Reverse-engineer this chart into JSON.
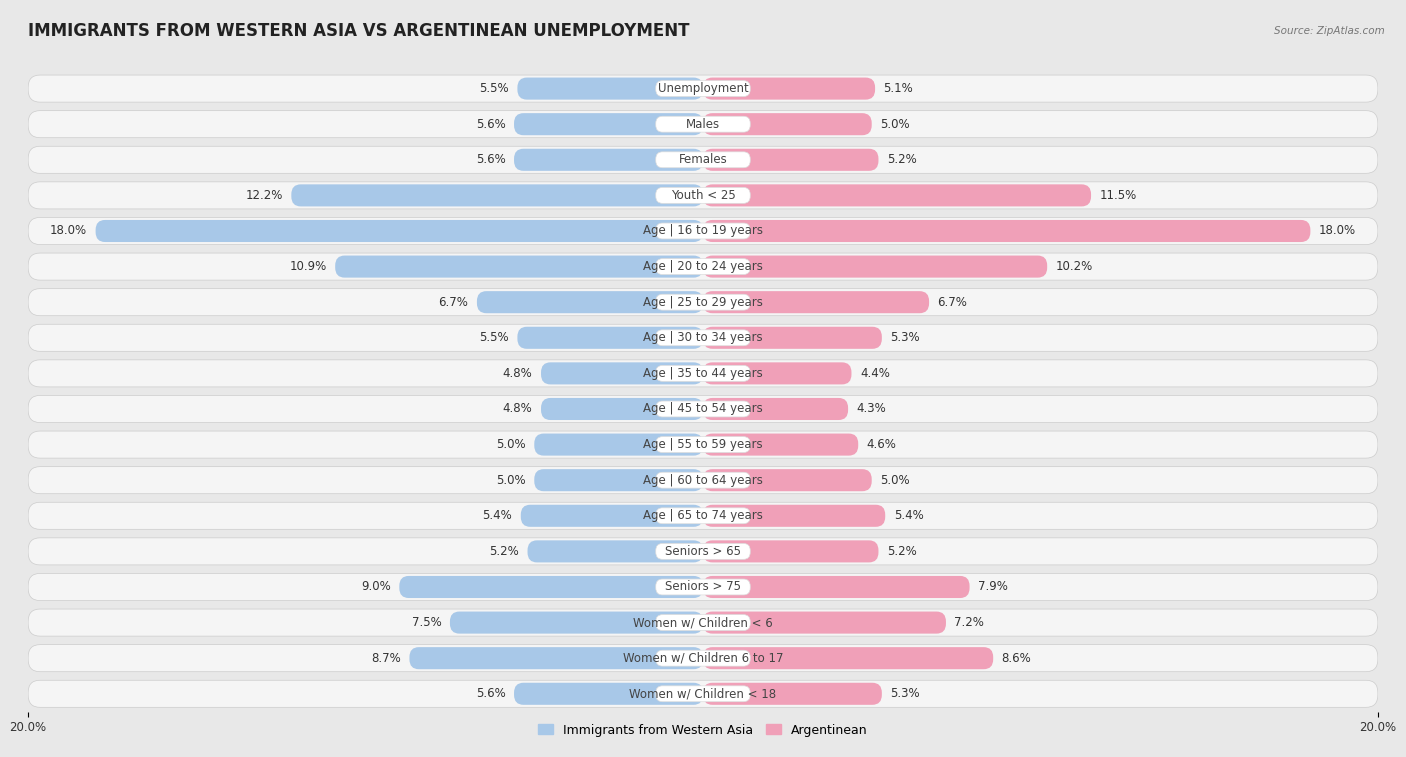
{
  "title": "IMMIGRANTS FROM WESTERN ASIA VS ARGENTINEAN UNEMPLOYMENT",
  "source": "Source: ZipAtlas.com",
  "categories": [
    "Unemployment",
    "Males",
    "Females",
    "Youth < 25",
    "Age | 16 to 19 years",
    "Age | 20 to 24 years",
    "Age | 25 to 29 years",
    "Age | 30 to 34 years",
    "Age | 35 to 44 years",
    "Age | 45 to 54 years",
    "Age | 55 to 59 years",
    "Age | 60 to 64 years",
    "Age | 65 to 74 years",
    "Seniors > 65",
    "Seniors > 75",
    "Women w/ Children < 6",
    "Women w/ Children 6 to 17",
    "Women w/ Children < 18"
  ],
  "left_values": [
    5.5,
    5.6,
    5.6,
    12.2,
    18.0,
    10.9,
    6.7,
    5.5,
    4.8,
    4.8,
    5.0,
    5.0,
    5.4,
    5.2,
    9.0,
    7.5,
    8.7,
    5.6
  ],
  "right_values": [
    5.1,
    5.0,
    5.2,
    11.5,
    18.0,
    10.2,
    6.7,
    5.3,
    4.4,
    4.3,
    4.6,
    5.0,
    5.4,
    5.2,
    7.9,
    7.2,
    8.6,
    5.3
  ],
  "left_color": "#a8c8e8",
  "right_color": "#f0a0b8",
  "max_value": 20.0,
  "background_color": "#e8e8e8",
  "row_bg_color": "#f5f5f5",
  "label_box_color": "#ffffff",
  "left_label": "Immigrants from Western Asia",
  "right_label": "Argentinean",
  "title_fontsize": 12,
  "cat_fontsize": 8.5,
  "value_fontsize": 8.5,
  "legend_fontsize": 9
}
